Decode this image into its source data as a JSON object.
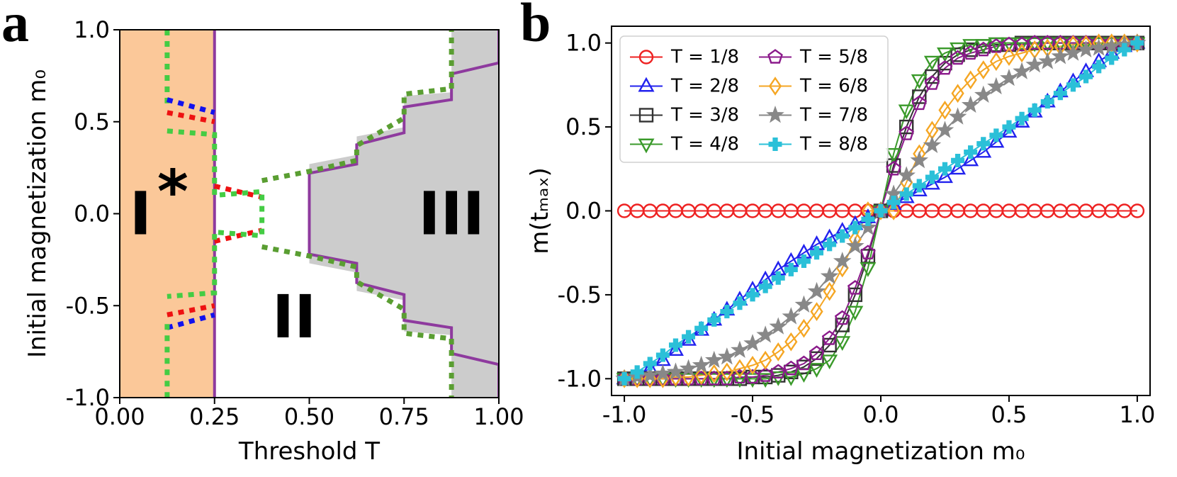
{
  "chart_data": [
    {
      "type": "phase",
      "panel": "a",
      "xlabel": "Threshold T",
      "ylabel": "Initial magnetization m₀",
      "xlim": [
        0,
        1
      ],
      "ylim": [
        -1,
        1
      ],
      "xticks": [
        {
          "value": 0,
          "label": "0.00"
        },
        0.25,
        {
          "value": 0.5,
          "label": "0.50"
        },
        0.75,
        {
          "value": 1,
          "label": "1.00"
        }
      ],
      "yticks": [
        {
          "value": -1,
          "label": "-1.0"
        },
        -0.5,
        {
          "value": 0,
          "label": "0.0"
        },
        0.5,
        {
          "value": 1,
          "label": "1.0"
        }
      ],
      "regions": [
        {
          "color": "#fbc899",
          "x": [
            0,
            0.25,
            0.25,
            0
          ],
          "y": [
            1,
            1,
            -1,
            -1
          ]
        },
        {
          "color": "#cccccc",
          "x": [
            0.5,
            0.625,
            0.625,
            0.75,
            0.75,
            0.875,
            0.875,
            1,
            1,
            0.875,
            0.875,
            0.75,
            0.75,
            0.625,
            0.625,
            0.5
          ],
          "y": [
            0.27,
            0.32,
            0.42,
            0.47,
            0.64,
            0.66,
            1,
            1,
            -1,
            -1,
            -0.66,
            -0.64,
            -0.47,
            -0.42,
            -0.32,
            -0.27
          ]
        }
      ],
      "series": [
        {
          "color": "#8e3a9e",
          "style": "solid",
          "x": [
            0.25,
            0.25
          ],
          "y": [
            -1,
            1
          ]
        },
        {
          "color": "#8e3a9e",
          "style": "solid",
          "x": [
            1,
            1,
            0.875,
            0.875,
            0.75,
            0.75,
            0.625,
            0.625,
            0.5,
            0.5,
            0.625,
            0.625,
            0.75,
            0.75,
            0.875,
            0.875,
            1,
            1
          ],
          "y": [
            1,
            0.82,
            0.76,
            0.62,
            0.58,
            0.44,
            0.375,
            0.27,
            0.22,
            -0.22,
            -0.27,
            -0.375,
            -0.44,
            -0.58,
            -0.62,
            -0.76,
            -0.82,
            -1
          ]
        },
        {
          "color": "#44cc44",
          "style": "dotted",
          "x": [
            0.125,
            0.125
          ],
          "y": [
            1,
            0.6
          ]
        },
        {
          "color": "#1111ee",
          "style": "dotted",
          "x": [
            0.125,
            0.25
          ],
          "y": [
            0.62,
            0.55
          ]
        },
        {
          "color": "#ee1111",
          "style": "dotted",
          "x": [
            0.125,
            0.25
          ],
          "y": [
            0.55,
            0.5
          ]
        },
        {
          "color": "#ee1111",
          "style": "dotted",
          "x": [
            0.25,
            0.375
          ],
          "y": [
            0.15,
            0.09
          ]
        },
        {
          "color": "#ee1111",
          "style": "dotted",
          "x": [
            0.25,
            0.375
          ],
          "y": [
            -0.15,
            -0.09
          ]
        },
        {
          "color": "#44cc44",
          "style": "dotted",
          "x": [
            0.125,
            0.25,
            0.25,
            0.375,
            0.375,
            0.25,
            0.25,
            0.125
          ],
          "y": [
            0.45,
            0.43,
            0.1,
            0.12,
            -0.12,
            -0.1,
            -0.43,
            -0.45
          ]
        },
        {
          "color": "#ee1111",
          "style": "dotted",
          "x": [
            0.125,
            0.25
          ],
          "y": [
            -0.55,
            -0.5
          ]
        },
        {
          "color": "#1111ee",
          "style": "dotted",
          "x": [
            0.125,
            0.25
          ],
          "y": [
            -0.62,
            -0.55
          ]
        },
        {
          "color": "#44cc44",
          "style": "dotted",
          "x": [
            0.125,
            0.125
          ],
          "y": [
            -0.6,
            -1
          ]
        },
        {
          "color": "#5a9e32",
          "style": "dotted",
          "x": [
            0.375,
            0.5,
            0.625,
            0.625,
            0.75,
            0.75,
            0.875,
            0.875
          ],
          "y": [
            0.18,
            0.23,
            0.29,
            0.37,
            0.52,
            0.65,
            0.68,
            1
          ]
        },
        {
          "color": "#5a9e32",
          "style": "dotted",
          "x": [
            0.375,
            0.5,
            0.625,
            0.625,
            0.75,
            0.75,
            0.875,
            0.875
          ],
          "y": [
            -0.18,
            -0.23,
            -0.29,
            -0.37,
            -0.52,
            -0.65,
            -0.68,
            -1
          ]
        }
      ],
      "annotations": [
        {
          "text": "I",
          "x": 0.055,
          "y": 0
        },
        {
          "text": "*",
          "x": 0.14,
          "y": 0.12
        },
        {
          "text": "II",
          "x": 0.46,
          "y": -0.56
        },
        {
          "text": "III",
          "x": 0.875,
          "y": 0
        }
      ]
    },
    {
      "type": "line",
      "panel": "b",
      "xlabel": "Initial magnetization m₀",
      "ylabel": "m(tₘₐₓ)",
      "xlim": [
        -1.05,
        1.05
      ],
      "ylim": [
        -1.1,
        1.1
      ],
      "legend": "upper left",
      "legend_columns": 2,
      "xticks": [
        {
          "value": -1,
          "label": "-1.0"
        },
        -0.5,
        {
          "value": 0,
          "label": "0.0"
        },
        0.5,
        {
          "value": 1,
          "label": "1.0"
        }
      ],
      "yticks": [
        {
          "value": -1,
          "label": "-1.0"
        },
        -0.5,
        {
          "value": 0,
          "label": "0.0"
        },
        0.5,
        {
          "value": 1,
          "label": "1.0"
        }
      ],
      "x": [
        -1,
        -0.95,
        -0.9,
        -0.85,
        -0.8,
        -0.75,
        -0.7,
        -0.65,
        -0.6,
        -0.55,
        -0.5,
        -0.45,
        -0.4,
        -0.35,
        -0.3,
        -0.25,
        -0.2,
        -0.15,
        -0.1,
        -0.05,
        0,
        0.05,
        0.1,
        0.15,
        0.2,
        0.25,
        0.3,
        0.35,
        0.4,
        0.45,
        0.5,
        0.55,
        0.6,
        0.65,
        0.7,
        0.75,
        0.8,
        0.85,
        0.9,
        0.95,
        1
      ],
      "series": [
        {
          "name": "T = 1/8",
          "color": "#ee2222",
          "marker": "circle",
          "values": [
            0,
            0,
            0,
            0,
            0,
            0,
            0,
            0,
            0,
            0,
            0,
            0,
            0,
            0,
            0,
            0,
            0,
            0,
            0,
            0,
            0,
            0,
            0,
            0,
            0,
            0,
            0,
            0,
            0,
            0,
            0,
            0,
            0,
            0,
            0,
            0,
            0,
            0,
            0,
            0,
            0
          ]
        },
        {
          "name": "T = 2/8",
          "color": "#2222ee",
          "marker": "triangle-up",
          "values": [
            -1,
            -0.98,
            -0.94,
            -0.89,
            -0.83,
            -0.77,
            -0.71,
            -0.65,
            -0.59,
            -0.53,
            -0.47,
            -0.41,
            -0.35,
            -0.3,
            -0.25,
            -0.2,
            -0.16,
            -0.12,
            -0.08,
            -0.04,
            0,
            0.04,
            0.08,
            0.12,
            0.16,
            0.2,
            0.25,
            0.3,
            0.35,
            0.41,
            0.47,
            0.53,
            0.59,
            0.65,
            0.71,
            0.77,
            0.83,
            0.89,
            0.94,
            0.98,
            1
          ]
        },
        {
          "name": "T = 3/8",
          "color": "#333333",
          "marker": "square",
          "values": [
            -1,
            -1,
            -1,
            -1,
            -1,
            -1,
            -1,
            -1,
            -1,
            -1,
            -0.99,
            -0.99,
            -0.98,
            -0.96,
            -0.93,
            -0.88,
            -0.8,
            -0.68,
            -0.5,
            -0.27,
            0,
            0.27,
            0.5,
            0.68,
            0.8,
            0.88,
            0.93,
            0.96,
            0.98,
            0.99,
            0.99,
            1,
            1,
            1,
            1,
            1,
            1,
            1,
            1,
            1,
            1
          ]
        },
        {
          "name": "T = 4/8",
          "color": "#3a9a2a",
          "marker": "triangle-down",
          "values": [
            -1,
            -1,
            -1,
            -1,
            -1,
            -1,
            -1,
            -1,
            -1,
            -1,
            -1,
            -1,
            -0.99,
            -0.99,
            -0.97,
            -0.94,
            -0.89,
            -0.78,
            -0.6,
            -0.34,
            0,
            0.34,
            0.6,
            0.78,
            0.89,
            0.94,
            0.97,
            0.99,
            0.99,
            1,
            1,
            1,
            1,
            1,
            1,
            1,
            1,
            1,
            1,
            1,
            1
          ]
        },
        {
          "name": "T = 5/8",
          "color": "#8b1a8b",
          "marker": "pentagon",
          "values": [
            -1,
            -1,
            -1,
            -1,
            -1,
            -1,
            -1,
            -1,
            -1,
            -0.99,
            -0.99,
            -0.98,
            -0.96,
            -0.94,
            -0.91,
            -0.85,
            -0.76,
            -0.64,
            -0.46,
            -0.25,
            0,
            0.25,
            0.46,
            0.64,
            0.76,
            0.85,
            0.91,
            0.94,
            0.96,
            0.98,
            0.99,
            0.99,
            1,
            1,
            1,
            1,
            1,
            1,
            1,
            1,
            1
          ]
        },
        {
          "name": "T = 6/8",
          "color": "#f5a623",
          "marker": "diamond",
          "values": [
            -1,
            -1,
            -1,
            -1,
            -0.99,
            -0.99,
            -0.98,
            -0.97,
            -0.96,
            -0.94,
            -0.92,
            -0.89,
            -0.84,
            -0.78,
            -0.7,
            -0.6,
            -0.48,
            -0.34,
            -0.17,
            0,
            0,
            0,
            0.17,
            0.34,
            0.48,
            0.6,
            0.7,
            0.78,
            0.84,
            0.89,
            0.92,
            0.94,
            0.96,
            0.97,
            0.98,
            0.99,
            0.99,
            1,
            1,
            1,
            1
          ]
        },
        {
          "name": "T = 7/8",
          "color": "#888888",
          "marker": "star",
          "values": [
            -1,
            -0.99,
            -0.98,
            -0.97,
            -0.96,
            -0.94,
            -0.92,
            -0.89,
            -0.87,
            -0.83,
            -0.79,
            -0.74,
            -0.69,
            -0.63,
            -0.56,
            -0.48,
            -0.39,
            -0.3,
            -0.21,
            -0.1,
            0,
            0.1,
            0.21,
            0.3,
            0.39,
            0.48,
            0.56,
            0.63,
            0.69,
            0.74,
            0.79,
            0.83,
            0.87,
            0.89,
            0.92,
            0.94,
            0.96,
            0.97,
            0.98,
            0.99,
            1
          ]
        },
        {
          "name": "T = 8/8",
          "color": "#2bc0d8",
          "marker": "plus",
          "values": [
            -1,
            -0.96,
            -0.91,
            -0.86,
            -0.8,
            -0.75,
            -0.7,
            -0.65,
            -0.6,
            -0.55,
            -0.5,
            -0.45,
            -0.4,
            -0.35,
            -0.3,
            -0.25,
            -0.2,
            -0.15,
            -0.1,
            -0.05,
            0,
            0.05,
            0.1,
            0.15,
            0.2,
            0.25,
            0.3,
            0.35,
            0.4,
            0.45,
            0.5,
            0.55,
            0.6,
            0.65,
            0.7,
            0.75,
            0.8,
            0.86,
            0.91,
            0.96,
            1
          ]
        }
      ]
    }
  ]
}
